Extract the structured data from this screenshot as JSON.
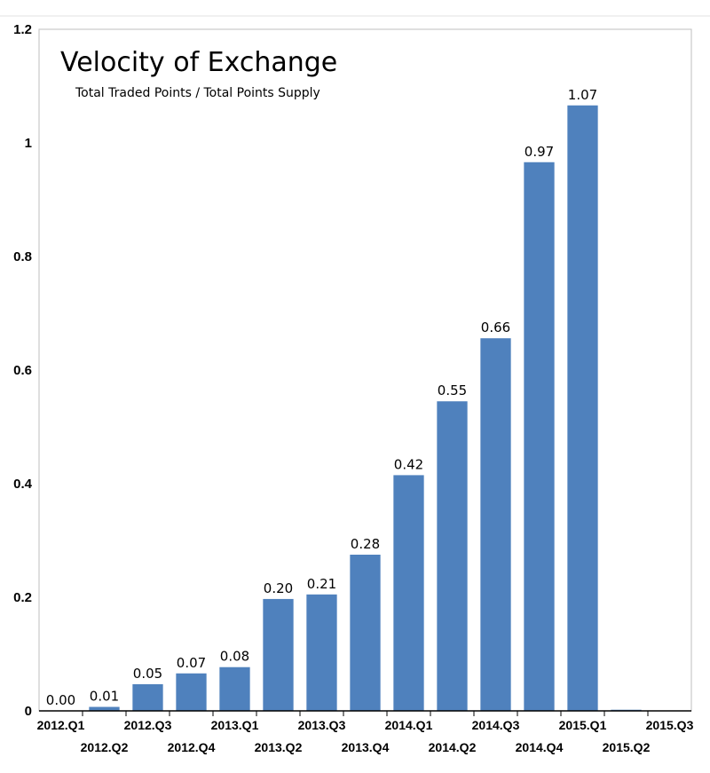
{
  "chart_data": {
    "type": "bar",
    "title": "Velocity of Exchange",
    "subtitle": "Total Traded Points / Total Points Supply",
    "xlabel": "",
    "ylabel": "",
    "ylim": [
      0,
      1.2
    ],
    "yticks": [
      "0",
      "0.2",
      "0.4",
      "0.6",
      "0.8",
      "1",
      "1.2"
    ],
    "grid": false,
    "legend": "none",
    "bar_color": "#4f81bd",
    "categories": [
      "2012.Q1",
      "2012.Q2",
      "2012.Q3",
      "2012.Q4",
      "2013.Q1",
      "2013.Q2",
      "2013.Q3",
      "2013.Q4",
      "2014.Q1",
      "2014.Q2",
      "2014.Q3",
      "2014.Q4",
      "2015.Q1",
      "2015.Q2",
      "2015.Q3"
    ],
    "values": [
      0.0,
      0.007,
      0.047,
      0.066,
      0.077,
      0.197,
      0.205,
      0.275,
      0.415,
      0.545,
      0.656,
      0.966,
      1.066,
      0.002,
      0.0
    ],
    "data_labels": [
      "0.00",
      "0.01",
      "0.05",
      "0.07",
      "0.08",
      "0.20",
      "0.21",
      "0.28",
      "0.42",
      "0.55",
      "0.66",
      "0.97",
      "1.07",
      "",
      ""
    ]
  }
}
